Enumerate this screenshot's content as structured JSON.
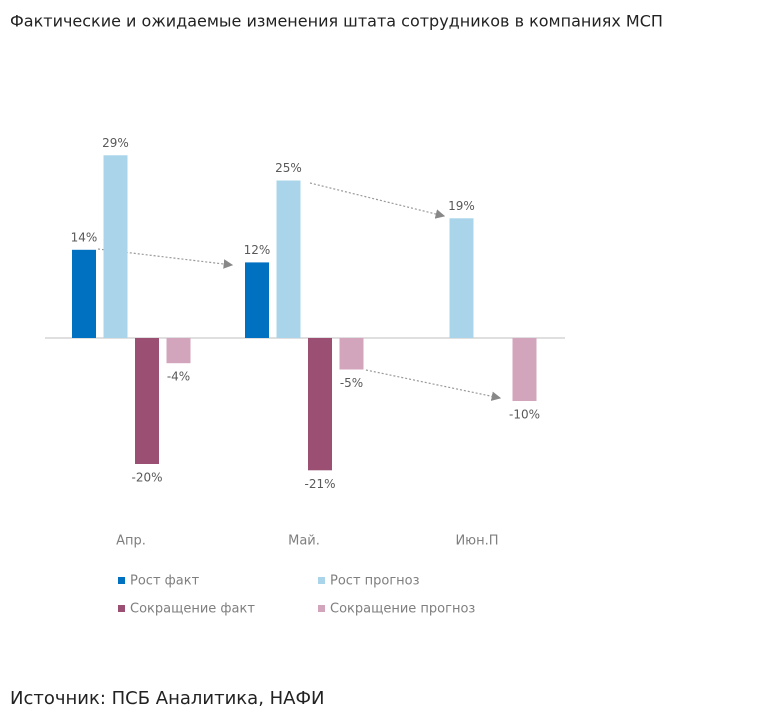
{
  "chart_data": {
    "type": "bar",
    "title": "Фактические и ожидаемые изменения штата сотрудников в компаниях МСП",
    "categories": [
      "Апр.",
      "Май.",
      "Июн.П"
    ],
    "series": [
      {
        "name": "Рост факт",
        "color": "#0070c0",
        "values": [
          14,
          12,
          null
        ],
        "value_labels": [
          "14%",
          "12%",
          null
        ]
      },
      {
        "name": "Рост прогноз",
        "color": "#a9d4ea",
        "values": [
          29,
          25,
          19
        ],
        "value_labels": [
          "29%",
          "25%",
          "19%"
        ]
      },
      {
        "name": "Сокращение факт",
        "color": "#9b4f72",
        "values": [
          -20,
          -21,
          null
        ],
        "value_labels": [
          "-20%",
          "-21%",
          null
        ]
      },
      {
        "name": "Сокращение прогноз",
        "color": "#d3a5bc",
        "values": [
          -4,
          -5,
          -10
        ],
        "value_labels": [
          "-4%",
          "-5%",
          "-10%"
        ]
      }
    ],
    "source": "Источник: ПСБ Аналитика, НАФИ"
  }
}
